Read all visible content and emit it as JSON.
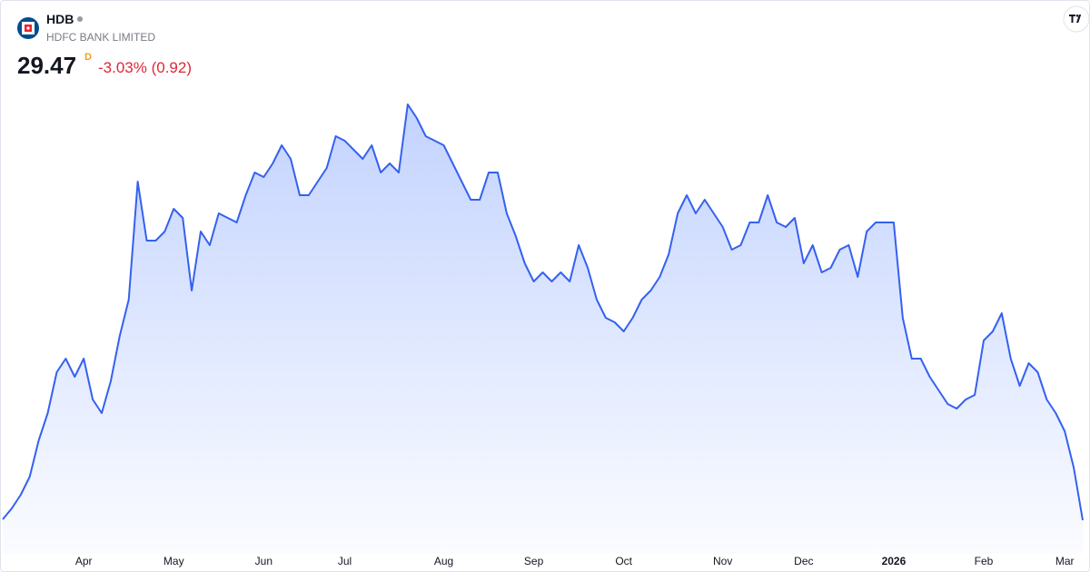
{
  "header": {
    "symbol": "HDB",
    "company": "HDFC BANK LIMITED",
    "price": "29.47",
    "interval": "D",
    "change": "-3.03% (0.92)"
  },
  "chart_data": {
    "type": "area",
    "color": "#3461f0",
    "ylim": [
      28.93,
      40.13
    ],
    "categories": [
      null,
      null,
      null,
      null,
      null,
      null,
      null,
      null,
      null,
      "Apr",
      null,
      null,
      null,
      null,
      null,
      null,
      null,
      null,
      null,
      "May",
      null,
      null,
      null,
      null,
      null,
      null,
      null,
      null,
      null,
      "Jun",
      null,
      null,
      null,
      null,
      null,
      null,
      null,
      null,
      "Jul",
      null,
      null,
      null,
      null,
      null,
      null,
      null,
      null,
      null,
      null,
      "Aug",
      null,
      null,
      null,
      null,
      null,
      null,
      null,
      null,
      null,
      "Sep",
      null,
      null,
      null,
      null,
      null,
      null,
      null,
      null,
      null,
      "Oct",
      null,
      null,
      null,
      null,
      null,
      null,
      null,
      null,
      null,
      null,
      "Nov",
      null,
      null,
      null,
      null,
      null,
      null,
      null,
      null,
      "Dec",
      null,
      null,
      null,
      null,
      null,
      null,
      null,
      null,
      null,
      "2026",
      null,
      null,
      null,
      null,
      null,
      null,
      null,
      null,
      null,
      "Feb",
      null,
      null,
      null,
      null,
      null,
      null,
      null,
      null,
      "Mar",
      null,
      null
    ],
    "values": [
      29.49,
      29.73,
      30.03,
      30.43,
      31.23,
      31.83,
      32.73,
      33.03,
      32.63,
      33.03,
      32.13,
      31.83,
      32.53,
      33.53,
      34.33,
      36.93,
      35.63,
      35.63,
      35.83,
      36.33,
      36.13,
      34.53,
      35.83,
      35.53,
      36.23,
      36.13,
      36.03,
      36.63,
      37.13,
      37.03,
      37.33,
      37.73,
      37.43,
      36.63,
      36.63,
      36.93,
      37.23,
      37.93,
      37.83,
      37.63,
      37.43,
      37.73,
      37.13,
      37.33,
      37.13,
      38.63,
      38.33,
      37.93,
      37.83,
      37.73,
      37.33,
      36.93,
      36.53,
      36.53,
      37.13,
      37.13,
      36.23,
      35.73,
      35.13,
      34.73,
      34.93,
      34.73,
      34.93,
      34.73,
      35.53,
      35.03,
      34.33,
      33.93,
      33.83,
      33.63,
      33.93,
      34.33,
      34.53,
      34.83,
      35.33,
      36.23,
      36.63,
      36.23,
      36.53,
      36.23,
      35.93,
      35.43,
      35.53,
      36.03,
      36.03,
      36.63,
      36.03,
      35.93,
      36.13,
      35.13,
      35.53,
      34.93,
      35.03,
      35.43,
      35.53,
      34.83,
      35.83,
      36.03,
      36.03,
      36.03,
      33.93,
      33.03,
      33.03,
      32.63,
      32.33,
      32.03,
      31.93,
      32.13,
      32.23,
      33.43,
      33.63,
      34.03,
      33.03,
      32.43,
      32.93,
      32.73,
      32.13,
      31.83,
      31.43,
      30.63,
      29.47
    ]
  }
}
